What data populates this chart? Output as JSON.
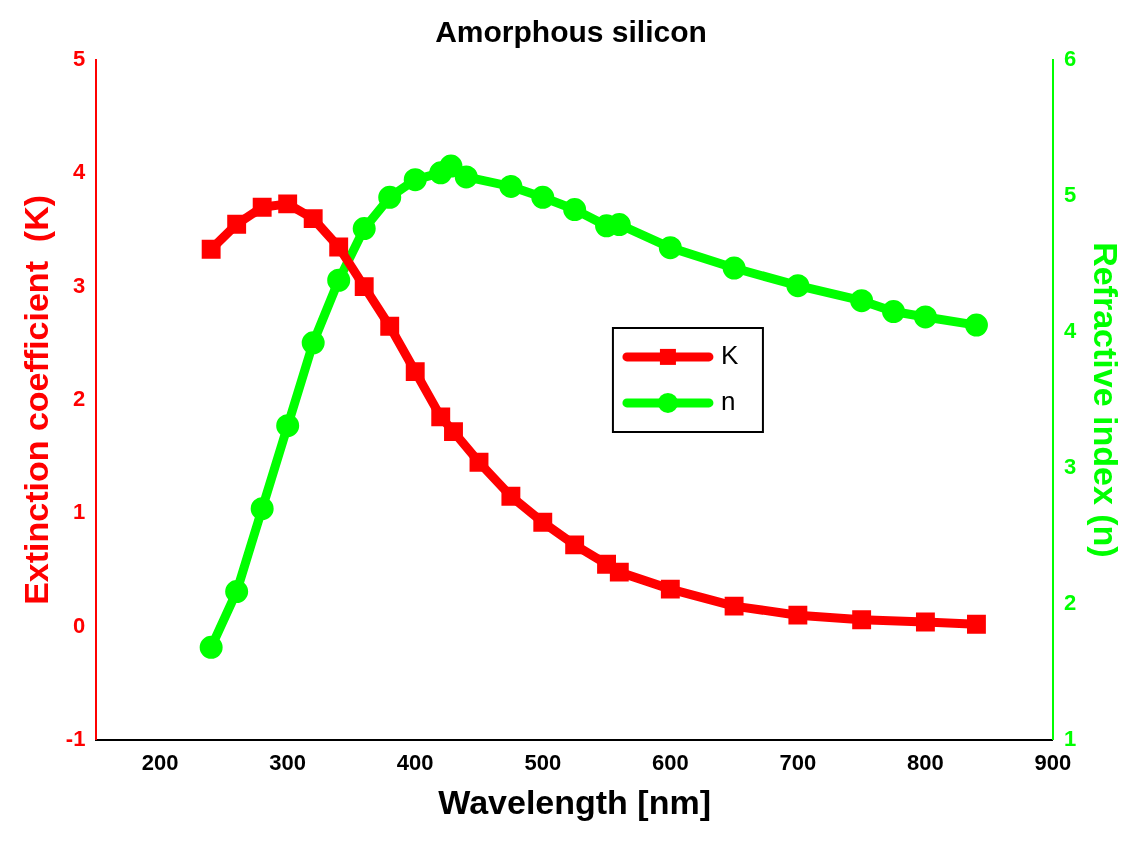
{
  "chart_data": {
    "type": "line",
    "title": "Amorphous silicon",
    "xlabel": "Wavelength [nm]",
    "ylabel": "Extinction coefficient  (K)",
    "y2label": "Refractive index (n)",
    "xlim": [
      150,
      900
    ],
    "xticks": [
      200,
      300,
      400,
      500,
      600,
      700,
      800,
      900
    ],
    "ylim": [
      -1,
      5
    ],
    "yticks": [
      -1,
      0,
      1,
      2,
      3,
      4,
      5
    ],
    "y2lim": [
      1,
      6
    ],
    "y2ticks": [
      1,
      2,
      3,
      4,
      5,
      6
    ],
    "legend": "right",
    "grid": false,
    "line_style": "solid",
    "series": [
      {
        "name": "K",
        "color": "#ff0000",
        "marker": "square",
        "axis": "y",
        "x": [
          240,
          260,
          280,
          300,
          320,
          340,
          360,
          380,
          400,
          420,
          430,
          450,
          475,
          500,
          525,
          550,
          560,
          600,
          650,
          700,
          750,
          800,
          840
        ],
        "values": [
          3.33,
          3.55,
          3.7,
          3.73,
          3.6,
          3.35,
          3.0,
          2.65,
          2.25,
          1.85,
          1.72,
          1.45,
          1.15,
          0.92,
          0.72,
          0.55,
          0.48,
          0.33,
          0.18,
          0.1,
          0.06,
          0.04,
          0.02
        ]
      },
      {
        "name": "n",
        "color": "#00ff00",
        "marker": "circle",
        "axis": "y2",
        "x": [
          240,
          260,
          280,
          300,
          320,
          340,
          360,
          380,
          400,
          420,
          428,
          440,
          475,
          500,
          525,
          550,
          560,
          600,
          650,
          700,
          750,
          775,
          800,
          840
        ],
        "values": [
          1.68,
          2.09,
          2.7,
          3.31,
          3.92,
          4.38,
          4.76,
          4.99,
          5.12,
          5.17,
          5.22,
          5.14,
          5.07,
          4.99,
          4.9,
          4.78,
          4.79,
          4.62,
          4.47,
          4.34,
          4.23,
          4.15,
          4.11,
          4.05
        ]
      }
    ]
  }
}
